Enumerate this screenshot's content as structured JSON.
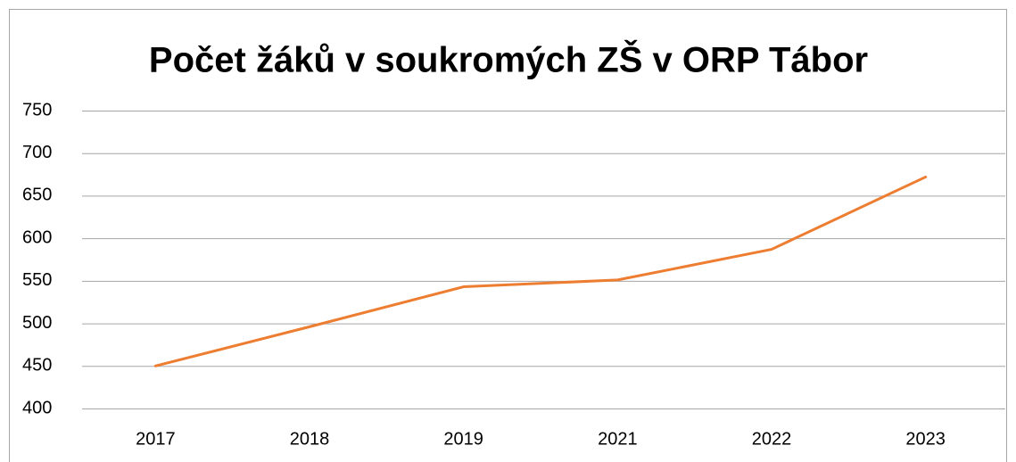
{
  "chart_data": {
    "type": "line",
    "title": "Počet žáků v soukromých ZŠ v ORP Tábor",
    "categories": [
      "2017",
      "2018",
      "2019",
      "2021",
      "2022",
      "2023"
    ],
    "series": [
      {
        "name": "Počet žáků",
        "color": "#ed7d31",
        "values": [
          450,
          496,
          543,
          551,
          587,
          672
        ]
      }
    ],
    "ylim": [
      400,
      750
    ],
    "yticks": [
      400,
      450,
      500,
      550,
      600,
      650,
      700,
      750
    ],
    "grid": true
  }
}
